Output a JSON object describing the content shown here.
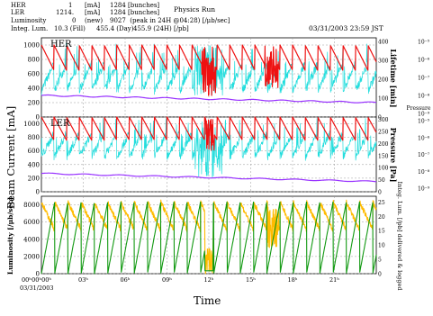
{
  "header": {
    "rows": [
      {
        "label": "HER",
        "value": "1",
        "unit": "[mA]",
        "bunches": "1284 [bunches]"
      },
      {
        "label": "LER",
        "value": "1214.",
        "unit": "[mA]",
        "bunches": "1284 [bunches]"
      },
      {
        "label": "Luminosity",
        "value": "0",
        "unit": "(new)",
        "extra": "9027  (peak in 24H @04:28) [/μb/sec]"
      },
      {
        "label": "Integ. Lum.",
        "value": "10.3 (Fill)",
        "unit": "455.4 (Day)",
        "extra": "455.9 (24H) [/pb]"
      }
    ],
    "run_status": "Physics Run",
    "timestamp": "03/31/2003 23:59 JST"
  },
  "colors": {
    "her_current": "#ee1111",
    "lifetime": "#22dddd",
    "pressure": "#9933ff",
    "luminosity": "#ffbb00",
    "integ_lum": "#119911"
  },
  "chart_data": [
    {
      "type": "line",
      "panel": "HER",
      "label": "HER",
      "x_range": [
        0,
        24
      ],
      "ylabel": "Beam Current [mA]",
      "ylim": [
        0,
        1100
      ],
      "yticks": [
        0,
        200,
        400,
        600,
        800,
        1000
      ],
      "y2label": "Lifetime [min]",
      "y2ticks": [
        0,
        100,
        200,
        300,
        400
      ],
      "y3label": "Pressure",
      "y3ticks": [
        "10⁻⁹",
        "10⁻⁸",
        "10⁻⁷",
        "10⁻⁶",
        "10⁻⁵"
      ],
      "series": [
        {
          "name": "",
          "values_desc": "sawtooth 650-1000 mA, refills about every 0.9 h; unstable 11.5-12.5 h and 16-17 h"
        },
        {
          "name": "",
          "values_desc": "250-800 min, spiky, rising during each fill"
        },
        {
          "name": "",
          "values_desc": "about 300 at start decreasing to 200 at end"
        }
      ]
    },
    {
      "type": "line",
      "panel": "LER",
      "label": "LER",
      "x_range": [
        0,
        24
      ],
      "ylim": [
        0,
        1100
      ],
      "yticks": [
        0,
        200,
        400,
        600,
        800,
        1000
      ],
      "y2label": "Pressure [Pa]",
      "y2ticks": [
        0,
        50,
        100,
        150,
        200,
        250,
        300
      ],
      "y3ticks": [
        "10⁻⁹",
        "10⁻⁸",
        "10⁻⁷",
        "10⁻⁶",
        "10⁻⁵"
      ],
      "series": [
        {
          "name": "",
          "values_desc": "sawtooth 750-1100 mA"
        },
        {
          "name": "",
          "values_desc": "150-400, large spikes around 12 h"
        },
        {
          "name": "",
          "values_desc": "about 270 falling to 150"
        }
      ]
    },
    {
      "type": "line",
      "panel": "Luminosity",
      "x_range": [
        0,
        24
      ],
      "ylabel": "Luminosity [/μb/sec]",
      "ylim": [
        0,
        9000
      ],
      "yticks": [
        0,
        2000,
        4000,
        6000,
        8000
      ],
      "y2label": "Integ. Lum. [/pb] delivered & logged",
      "y2ticks": [
        0,
        5,
        10,
        15,
        20,
        25
      ],
      "series": [
        {
          "name": "",
          "values_desc": "sawtooth 4500-8500, drop near 0 at 12 h"
        },
        {
          "name": "",
          "values_desc": "ramps 0 to about 25 per fill"
        }
      ],
      "xlabel": "Time",
      "xticks": [
        "00ʰ00ʰ00ʰ",
        "03ʰ",
        "06ʰ",
        "09ʰ",
        "12ʰ",
        "15ʰ",
        "18ʰ",
        "21ʰ"
      ],
      "date_label": "03/31/2003"
    }
  ]
}
